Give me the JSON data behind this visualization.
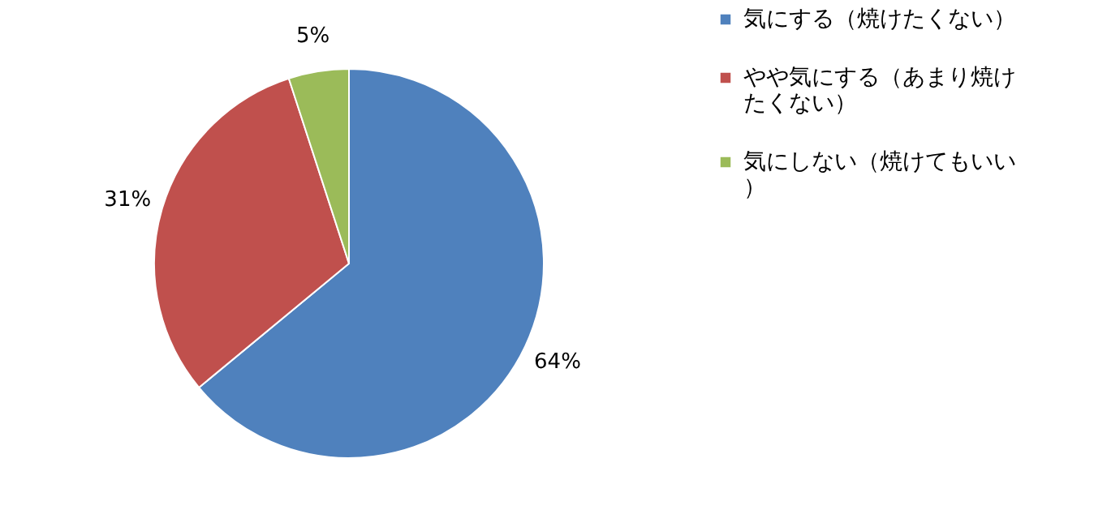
{
  "chart_data": {
    "type": "pie",
    "categories": [
      "気にする（焼けたくない）",
      "やや気にする（あまり焼けたくない）",
      "気にしない（焼けてもいい）"
    ],
    "values": [
      64,
      31,
      5
    ],
    "colors": [
      "#4f81bd",
      "#c0504d",
      "#9bbb59"
    ],
    "value_labels": [
      "64%",
      "31%",
      "5%"
    ],
    "legend": "right"
  }
}
